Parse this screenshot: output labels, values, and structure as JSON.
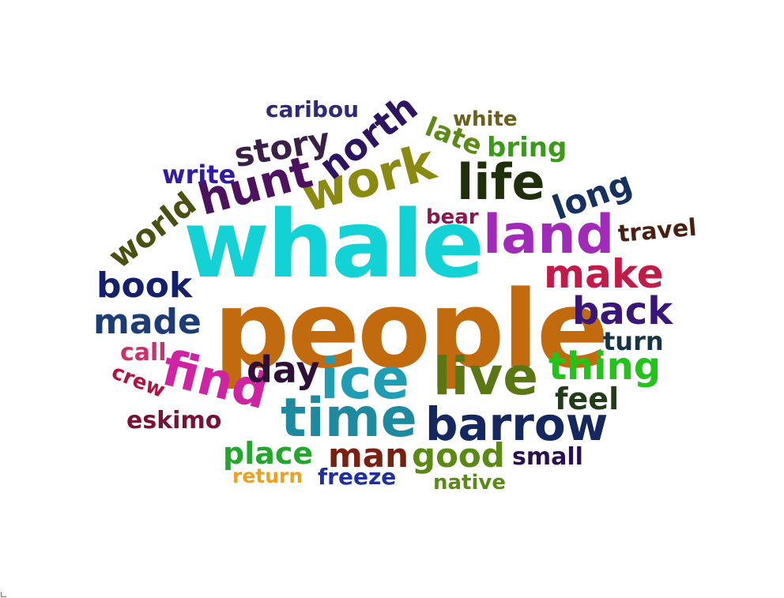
{
  "words": [
    {
      "text": "people",
      "color": "#c26a0e"
    },
    {
      "text": "whale",
      "color": "#12d2d6"
    },
    {
      "text": "live",
      "color": "#5a7714"
    },
    {
      "text": "ice",
      "color": "#1e9db4"
    },
    {
      "text": "time",
      "color": "#1e8aa0"
    },
    {
      "text": "barrow",
      "color": "#14275e"
    },
    {
      "text": "land",
      "color": "#a22ab8"
    },
    {
      "text": "life",
      "color": "#1e2f0a"
    },
    {
      "text": "work",
      "color": "#8a8a10"
    },
    {
      "text": "find",
      "color": "#cf23a4"
    },
    {
      "text": "hunt",
      "color": "#4c1260"
    },
    {
      "text": "make",
      "color": "#c31a48"
    },
    {
      "text": "back",
      "color": "#3a1678"
    },
    {
      "text": "thing",
      "color": "#22c41a"
    },
    {
      "text": "made",
      "color": "#1c3c78"
    },
    {
      "text": "book",
      "color": "#14206a"
    },
    {
      "text": "day",
      "color": "#2e0f36"
    },
    {
      "text": "good",
      "color": "#5a8a12"
    },
    {
      "text": "man",
      "color": "#7a2010"
    },
    {
      "text": "north",
      "color": "#2d1460"
    },
    {
      "text": "story",
      "color": "#3a2046"
    },
    {
      "text": "long",
      "color": "#163060"
    },
    {
      "text": "world",
      "color": "#4a5010"
    },
    {
      "text": "place",
      "color": "#22a62c"
    },
    {
      "text": "feel",
      "color": "#223c1a"
    },
    {
      "text": "turn",
      "color": "#163448"
    },
    {
      "text": "travel",
      "color": "#4a1e10"
    },
    {
      "text": "bring",
      "color": "#3a9a1a"
    },
    {
      "text": "late",
      "color": "#5c8a14"
    },
    {
      "text": "white",
      "color": "#6a6018"
    },
    {
      "text": "caribou",
      "color": "#2e2a78"
    },
    {
      "text": "write",
      "color": "#3418a8"
    },
    {
      "text": "bear",
      "color": "#8a1650"
    },
    {
      "text": "call",
      "color": "#d42c6a"
    },
    {
      "text": "crew",
      "color": "#b4123e"
    },
    {
      "text": "eskimo",
      "color": "#7a1034"
    },
    {
      "text": "return",
      "color": "#f0a020"
    },
    {
      "text": "freeze",
      "color": "#1c30a0"
    },
    {
      "text": "small",
      "color": "#2a1050"
    },
    {
      "text": "native",
      "color": "#5a8a18"
    }
  ]
}
